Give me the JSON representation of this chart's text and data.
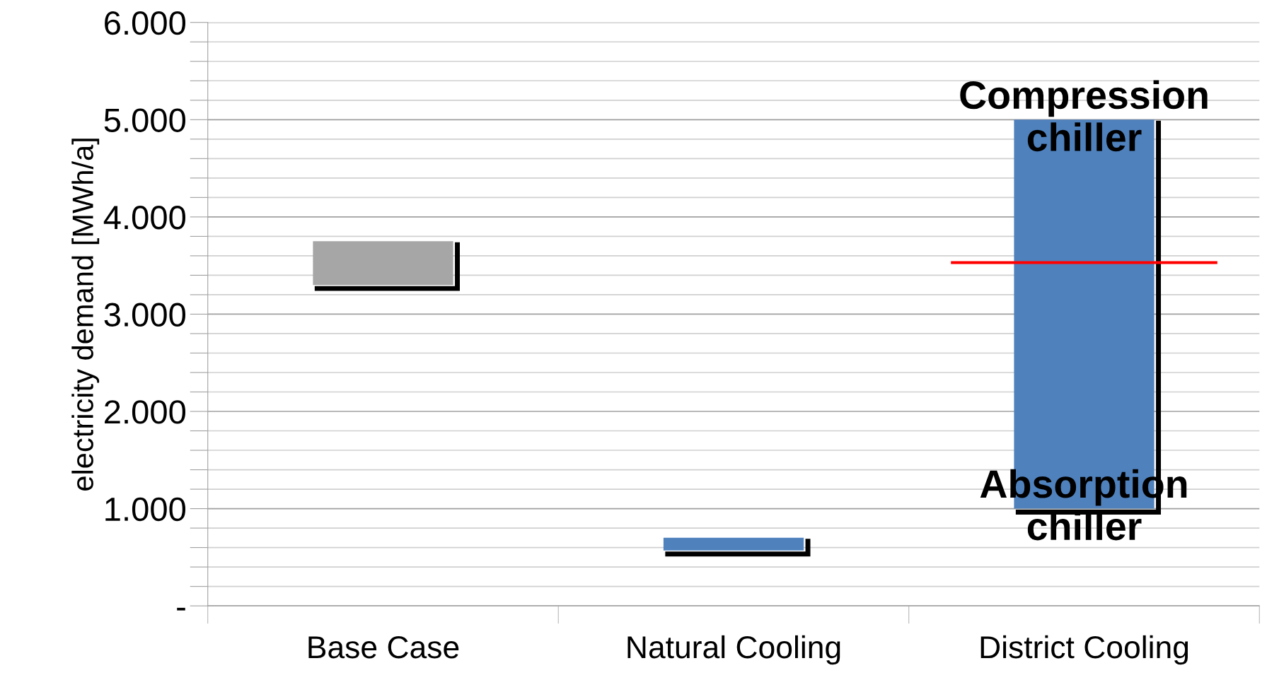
{
  "chart_data": {
    "type": "bar",
    "ylabel": "electricity demand [MWh/a]",
    "categories": [
      "Base Case",
      "Natural Cooling",
      "District Cooling"
    ],
    "base": [
      3300,
      570,
      1000
    ],
    "values": [
      450,
      130,
      4000
    ],
    "colors": [
      "#a6a6a6",
      "#4f81bd",
      "#4f81bd"
    ],
    "ylim": [
      0,
      6000
    ],
    "yticks": [
      {
        "value": 0,
        "label": "-"
      },
      {
        "value": 200,
        "label": null
      },
      {
        "value": 400,
        "label": null
      },
      {
        "value": 600,
        "label": null
      },
      {
        "value": 800,
        "label": null
      },
      {
        "value": 1000,
        "label": "1.000"
      },
      {
        "value": 1200,
        "label": null
      },
      {
        "value": 1400,
        "label": null
      },
      {
        "value": 1600,
        "label": null
      },
      {
        "value": 1800,
        "label": null
      },
      {
        "value": 2000,
        "label": "2.000"
      },
      {
        "value": 2200,
        "label": null
      },
      {
        "value": 2400,
        "label": null
      },
      {
        "value": 2600,
        "label": null
      },
      {
        "value": 2800,
        "label": null
      },
      {
        "value": 3000,
        "label": "3.000"
      },
      {
        "value": 3200,
        "label": null
      },
      {
        "value": 3400,
        "label": null
      },
      {
        "value": 3600,
        "label": null
      },
      {
        "value": 3800,
        "label": null
      },
      {
        "value": 4000,
        "label": "4.000"
      },
      {
        "value": 4200,
        "label": null
      },
      {
        "value": 4400,
        "label": null
      },
      {
        "value": 4600,
        "label": null
      },
      {
        "value": 4800,
        "label": null
      },
      {
        "value": 5000,
        "label": "5.000"
      },
      {
        "value": 5200,
        "label": null
      },
      {
        "value": 5400,
        "label": null
      },
      {
        "value": 5600,
        "label": null
      },
      {
        "value": 5800,
        "label": null
      },
      {
        "value": 6000,
        "label": "6.000"
      }
    ],
    "grid": "y",
    "ref_lines": [
      {
        "axis": "y",
        "value": 3530,
        "label": null,
        "color": "#ff0000"
      }
    ],
    "annotations": [
      {
        "text": "Compression\nchiller",
        "x": "District Cooling",
        "y": 5000
      },
      {
        "text": "Absorption\nchiller",
        "x": "District Cooling",
        "y": 1000
      }
    ]
  }
}
